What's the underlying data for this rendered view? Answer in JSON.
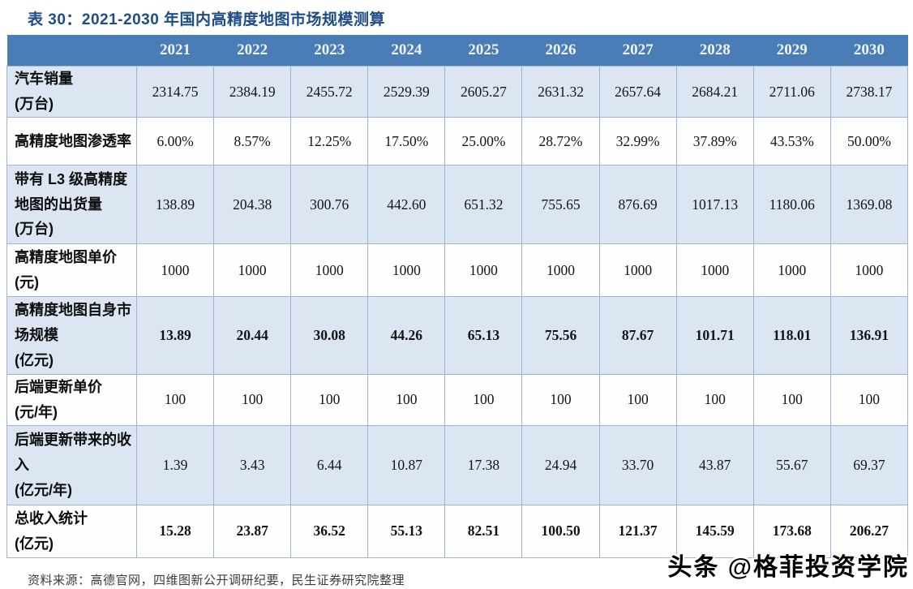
{
  "page": {
    "title": "表 30：2021-2030 年国内高精度地图市场规模测算",
    "source_note": "资料来源：高德官网，四维图新公开调研纪要，民生证券研究院整理",
    "watermark": "头条 @格菲投资学院"
  },
  "colors": {
    "title_text": "#1d4c86",
    "header_bg": "#4a7cb5",
    "header_text": "#eef4fb",
    "row_alt_bg": "#dce6f2",
    "row_bg": "#fefefe",
    "cell_border": "#9db4d6",
    "value_text": "#141414",
    "source_text": "#3c3c3c",
    "watermark_text": "#000000"
  },
  "table": {
    "years": [
      "2021",
      "2022",
      "2023",
      "2024",
      "2025",
      "2026",
      "2027",
      "2028",
      "2029",
      "2030"
    ],
    "rows": [
      {
        "label": "汽车销量",
        "unit": "(万台)",
        "values": [
          "2314.75",
          "2384.19",
          "2455.72",
          "2529.39",
          "2605.27",
          "2631.32",
          "2657.64",
          "2684.21",
          "2711.06",
          "2738.17"
        ]
      },
      {
        "label": "高精度地图渗透率",
        "unit": "",
        "values": [
          "6.00%",
          "8.57%",
          "12.25%",
          "17.50%",
          "25.00%",
          "28.72%",
          "32.99%",
          "37.89%",
          "43.53%",
          "50.00%"
        ]
      },
      {
        "label": "带有 L3 级高精度地图的出货量",
        "unit": "(万台)",
        "values": [
          "138.89",
          "204.38",
          "300.76",
          "442.60",
          "651.32",
          "755.65",
          "876.69",
          "1017.13",
          "1180.06",
          "1369.08"
        ]
      },
      {
        "label": "高精度地图单价",
        "unit": "(元)",
        "values": [
          "1000",
          "1000",
          "1000",
          "1000",
          "1000",
          "1000",
          "1000",
          "1000",
          "1000",
          "1000"
        ]
      },
      {
        "label": "高精度地图自身市场规模",
        "unit": "(亿元)",
        "values": [
          "13.89",
          "20.44",
          "30.08",
          "44.26",
          "65.13",
          "75.56",
          "87.67",
          "101.71",
          "118.01",
          "136.91"
        ]
      },
      {
        "label": "后端更新单价",
        "unit": "(元/年)",
        "values": [
          "100",
          "100",
          "100",
          "100",
          "100",
          "100",
          "100",
          "100",
          "100",
          "100"
        ]
      },
      {
        "label": "后端更新带来的收入",
        "unit": "(亿元/年)",
        "values": [
          "1.39",
          "3.43",
          "6.44",
          "10.87",
          "17.38",
          "24.94",
          "33.70",
          "43.87",
          "55.67",
          "69.37"
        ]
      },
      {
        "label": "总收入统计",
        "unit": "(亿元)",
        "values": [
          "15.28",
          "23.87",
          "36.52",
          "55.13",
          "82.51",
          "100.50",
          "121.37",
          "145.59",
          "173.68",
          "206.27"
        ]
      }
    ]
  }
}
